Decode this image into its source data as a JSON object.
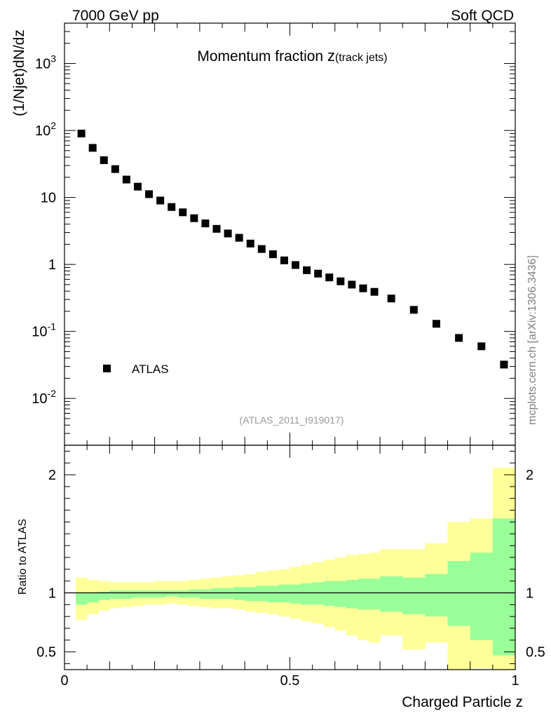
{
  "header": {
    "left": "7000 GeV pp",
    "right": "Soft QCD"
  },
  "side_label": "mcplots.cern.ch [arXiv:1306.3436]",
  "colors": {
    "outer_band": "#ffff99",
    "inner_band": "#99ff99",
    "marker": "#000000",
    "analysis_text": "#999999"
  },
  "chart_data": [
    {
      "type": "scatter",
      "title": "Momentum fraction",
      "title_symbol": "z",
      "title_sub": "(track jets)",
      "ylabel": "(1/Njet)dN/dz",
      "yscale": "log",
      "ylim": [
        0.002,
        4000
      ],
      "xlim": [
        0,
        1
      ],
      "ytick_labels": [
        "10^-2",
        "10^-1",
        "1",
        "10",
        "10^2",
        "10^3"
      ],
      "analysis_id": "(ATLAS_2011_I919017)",
      "legend": {
        "label": "ATLAS",
        "placement": "bottom-left"
      },
      "series": [
        {
          "name": "ATLAS",
          "x": [
            0.0375,
            0.0625,
            0.0875,
            0.1125,
            0.1375,
            0.1625,
            0.1875,
            0.2125,
            0.2375,
            0.2625,
            0.2875,
            0.3125,
            0.3375,
            0.3625,
            0.3875,
            0.4125,
            0.4375,
            0.4625,
            0.4875,
            0.5125,
            0.5375,
            0.5625,
            0.5875,
            0.6125,
            0.6375,
            0.6625,
            0.6875,
            0.725,
            0.775,
            0.825,
            0.875,
            0.925,
            0.975
          ],
          "values": [
            90,
            55,
            36,
            26.5,
            18.5,
            14.5,
            11.2,
            9.0,
            7.2,
            6.0,
            4.9,
            4.1,
            3.4,
            2.9,
            2.5,
            2.05,
            1.7,
            1.42,
            1.15,
            0.98,
            0.82,
            0.73,
            0.64,
            0.56,
            0.5,
            0.44,
            0.39,
            0.31,
            0.21,
            0.13,
            0.08,
            0.06,
            0.032
          ]
        }
      ]
    },
    {
      "type": "area",
      "ylabel": "Ratio to ATLAS",
      "xlabel": "Charged Particle z",
      "xlim": [
        0,
        1
      ],
      "ylim": [
        0.35,
        2.25
      ],
      "xtick_labels": [
        "0",
        "0.5",
        "1"
      ],
      "ytick_labels": [
        "0.5",
        "1",
        "2"
      ],
      "reference_line": 1,
      "bin_edges": [
        0.025,
        0.05,
        0.075,
        0.1,
        0.125,
        0.15,
        0.175,
        0.2,
        0.225,
        0.25,
        0.275,
        0.3,
        0.325,
        0.35,
        0.375,
        0.4,
        0.425,
        0.45,
        0.475,
        0.5,
        0.525,
        0.55,
        0.575,
        0.6,
        0.625,
        0.65,
        0.675,
        0.7,
        0.75,
        0.8,
        0.85,
        0.9,
        0.95,
        1.0
      ],
      "series": [
        {
          "name": "stat band",
          "lower": [
            0.9,
            0.92,
            0.94,
            0.95,
            0.95,
            0.96,
            0.96,
            0.96,
            0.97,
            0.96,
            0.96,
            0.95,
            0.95,
            0.95,
            0.94,
            0.93,
            0.93,
            0.92,
            0.92,
            0.91,
            0.9,
            0.9,
            0.89,
            0.88,
            0.87,
            0.86,
            0.86,
            0.84,
            0.82,
            0.8,
            0.72,
            0.6,
            0.47
          ],
          "upper": [
            1.0,
            1.0,
            1.01,
            1.02,
            1.02,
            1.02,
            1.02,
            1.02,
            1.02,
            1.02,
            1.03,
            1.03,
            1.04,
            1.04,
            1.05,
            1.05,
            1.06,
            1.06,
            1.07,
            1.07,
            1.08,
            1.09,
            1.1,
            1.1,
            1.11,
            1.12,
            1.12,
            1.14,
            1.13,
            1.16,
            1.27,
            1.34,
            1.63
          ]
        },
        {
          "name": "total band",
          "lower": [
            0.77,
            0.82,
            0.85,
            0.87,
            0.88,
            0.89,
            0.9,
            0.9,
            0.91,
            0.9,
            0.89,
            0.88,
            0.87,
            0.87,
            0.86,
            0.84,
            0.83,
            0.82,
            0.8,
            0.78,
            0.76,
            0.74,
            0.71,
            0.68,
            0.64,
            0.6,
            0.58,
            0.64,
            0.52,
            0.58,
            0.3,
            0.36,
            0.21
          ],
          "upper": [
            1.13,
            1.11,
            1.1,
            1.09,
            1.09,
            1.09,
            1.09,
            1.1,
            1.1,
            1.1,
            1.11,
            1.12,
            1.13,
            1.14,
            1.15,
            1.16,
            1.18,
            1.19,
            1.2,
            1.22,
            1.24,
            1.26,
            1.28,
            1.3,
            1.32,
            1.33,
            1.34,
            1.37,
            1.37,
            1.42,
            1.6,
            1.63,
            2.06
          ]
        }
      ]
    }
  ]
}
